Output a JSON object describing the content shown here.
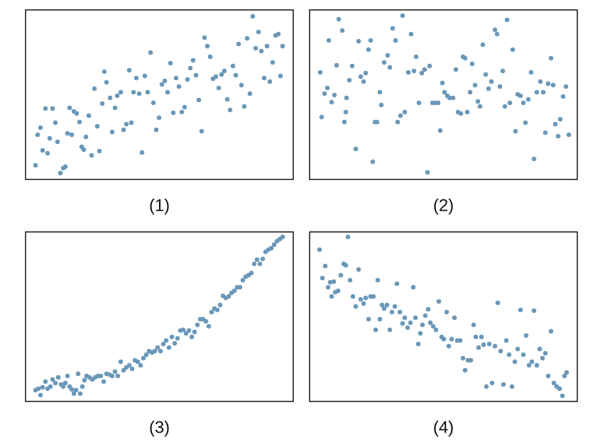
{
  "chart_data": [
    {
      "type": "scatter",
      "title": "(1)",
      "color": "#6b98b9",
      "xlim": [
        0,
        377
      ],
      "ylim": [
        0,
        239
      ],
      "x": [
        14,
        17,
        21,
        24,
        28,
        31,
        34,
        38,
        42,
        45,
        49,
        53,
        56,
        59,
        62,
        65,
        68,
        72,
        76,
        79,
        82,
        85,
        89,
        93,
        97,
        101,
        104,
        108,
        111,
        114,
        119,
        122,
        126,
        129,
        134,
        138,
        142,
        146,
        149,
        152,
        156,
        160,
        164,
        168,
        172,
        176,
        180,
        184,
        188,
        192,
        196,
        200,
        204,
        208,
        212,
        216,
        220,
        224,
        228,
        232,
        236,
        240,
        244,
        248,
        252,
        256,
        260,
        264,
        268,
        272,
        276,
        280,
        284,
        288,
        292,
        296,
        300,
        304,
        308,
        312,
        316,
        320,
        324,
        328,
        332,
        336,
        340,
        344,
        348,
        352,
        356,
        359,
        362
      ],
      "values": [
        20,
        63,
        73,
        41,
        100,
        37,
        58,
        100,
        80,
        53,
        9,
        16,
        18,
        65,
        101,
        63,
        96,
        93,
        81,
        46,
        42,
        60,
        90,
        34,
        128,
        75,
        40,
        107,
        152,
        137,
        115,
        67,
        101,
        118,
        123,
        70,
        78,
        154,
        80,
        123,
        143,
        121,
        38,
        146,
        123,
        179,
        108,
        70,
        87,
        134,
        139,
        123,
        164,
        94,
        143,
        131,
        95,
        102,
        141,
        157,
        168,
        147,
        112,
        68,
        200,
        188,
        173,
        142,
        145,
        129,
        148,
        153,
        113,
        98,
        160,
        147,
        191,
        133,
        103,
        199,
        121,
        230,
        185,
        208,
        181,
        143,
        188,
        138,
        165,
        203,
        205,
        146,
        188
      ]
    },
    {
      "type": "scatter",
      "title": "(2)",
      "color": "#6b98b9",
      "xlim": [
        0,
        377
      ],
      "ylim": [
        0,
        239
      ],
      "x": [
        15,
        17,
        21,
        25,
        27,
        31,
        35,
        38,
        41,
        46,
        49,
        51,
        52,
        56,
        60,
        65,
        69,
        72,
        76,
        79,
        83,
        86,
        89,
        92,
        95,
        99,
        101,
        105,
        110,
        113,
        117,
        121,
        124,
        128,
        131,
        134,
        139,
        143,
        147,
        150,
        154,
        158,
        162,
        166,
        169,
        173,
        177,
        181,
        184,
        187,
        190,
        194,
        197,
        202,
        206,
        209,
        213,
        216,
        219,
        222,
        226,
        229,
        233,
        237,
        240,
        244,
        248,
        252,
        256,
        261,
        264,
        268,
        272,
        275,
        278,
        282,
        286,
        290,
        293,
        297,
        301,
        304,
        308,
        312,
        316,
        320,
        325,
        329,
        332,
        336,
        340,
        343,
        346,
        350,
        353,
        357,
        361,
        365
      ],
      "values": [
        151,
        88,
        121,
        129,
        196,
        109,
        119,
        161,
        226,
        210,
        81,
        95,
        115,
        140,
        160,
        43,
        195,
        145,
        138,
        150,
        183,
        196,
        25,
        81,
        81,
        123,
        105,
        165,
        175,
        158,
        213,
        196,
        81,
        90,
        231,
        95,
        151,
        205,
        153,
        173,
        108,
        150,
        155,
        10,
        160,
        108,
        108,
        108,
        69,
        136,
        123,
        118,
        115,
        115,
        155,
        95,
        93,
        173,
        171,
        95,
        123,
        163,
        133,
        110,
        103,
        190,
        148,
        128,
        138,
        211,
        205,
        131,
        153,
        103,
        225,
        108,
        183,
        68,
        120,
        118,
        108,
        80,
        113,
        151,
        29,
        123,
        138,
        123,
        66,
        135,
        171,
        133,
        78,
        61,
        85,
        117,
        131,
        63
      ]
    },
    {
      "type": "scatter",
      "title": "(3)",
      "color": "#6b98b9",
      "xlim": [
        0,
        377
      ],
      "ylim": [
        0,
        239
      ],
      "x": [
        14,
        18,
        21,
        24,
        28,
        31,
        35,
        38,
        42,
        46,
        50,
        53,
        56,
        59,
        62,
        65,
        68,
        71,
        74,
        77,
        80,
        83,
        86,
        90,
        94,
        98,
        102,
        106,
        110,
        114,
        118,
        122,
        126,
        130,
        134,
        138,
        142,
        146,
        150,
        154,
        158,
        162,
        166,
        170,
        174,
        178,
        182,
        186,
        190,
        194,
        198,
        202,
        206,
        210,
        214,
        218,
        222,
        226,
        230,
        234,
        238,
        242,
        246,
        250,
        254,
        258,
        262,
        266,
        270,
        274,
        278,
        282,
        286,
        290,
        294,
        298,
        302,
        306,
        310,
        314,
        318,
        322,
        326,
        330,
        334,
        338,
        342,
        346,
        350,
        354,
        358,
        362
      ],
      "values": [
        16,
        18,
        9,
        20,
        28,
        18,
        21,
        31,
        26,
        34,
        24,
        21,
        26,
        36,
        21,
        17,
        11,
        16,
        39,
        11,
        21,
        30,
        36,
        34,
        31,
        34,
        36,
        36,
        28,
        39,
        38,
        36,
        42,
        36,
        56,
        44,
        48,
        51,
        46,
        58,
        56,
        51,
        61,
        66,
        71,
        69,
        71,
        76,
        71,
        81,
        86,
        76,
        91,
        82,
        89,
        100,
        101,
        96,
        100,
        91,
        98,
        108,
        116,
        116,
        113,
        106,
        126,
        131,
        129,
        136,
        149,
        146,
        148,
        153,
        156,
        161,
        161,
        171,
        176,
        178,
        181,
        194,
        200,
        194,
        201,
        211,
        214,
        216,
        221,
        226,
        229,
        232
      ]
    },
    {
      "type": "scatter",
      "title": "(4)",
      "color": "#6b98b9",
      "xlim": [
        0,
        377
      ],
      "ylim": [
        0,
        239
      ],
      "x": [
        14,
        18,
        22,
        26,
        29,
        31,
        34,
        36,
        40,
        44,
        48,
        51,
        54,
        57,
        61,
        65,
        69,
        72,
        76,
        79,
        83,
        86,
        90,
        93,
        96,
        99,
        102,
        105,
        109,
        113,
        116,
        120,
        123,
        127,
        131,
        134,
        138,
        142,
        146,
        149,
        153,
        156,
        159,
        163,
        167,
        170,
        174,
        178,
        182,
        186,
        189,
        193,
        196,
        200,
        204,
        208,
        212,
        216,
        219,
        223,
        227,
        231,
        234,
        238,
        242,
        245,
        249,
        253,
        257,
        261,
        265,
        269,
        273,
        277,
        281,
        285,
        289,
        293,
        297,
        301,
        305,
        309,
        313,
        316,
        320,
        324,
        328,
        332,
        336,
        340,
        344,
        348,
        352,
        356,
        359,
        362
      ],
      "values": [
        214,
        174,
        191,
        161,
        168,
        148,
        169,
        154,
        156,
        178,
        194,
        192,
        232,
        171,
        148,
        134,
        186,
        144,
        138,
        146,
        116,
        148,
        148,
        101,
        171,
        116,
        136,
        131,
        136,
        101,
        126,
        134,
        166,
        126,
        110,
        118,
        104,
        111,
        161,
        118,
        81,
        96,
        108,
        121,
        130,
        111,
        106,
        101,
        141,
        91,
        88,
        126,
        78,
        88,
        118,
        86,
        86,
        61,
        44,
        58,
        58,
        108,
        91,
        76,
        91,
        80,
        21,
        81,
        26,
        78,
        139,
        71,
        24,
        86,
        66,
        21,
        56,
        74,
        129,
        66,
        93,
        51,
        56,
        128,
        51,
        74,
        61,
        68,
        36,
        99,
        26,
        21,
        18,
        8,
        36,
        41
      ]
    }
  ]
}
